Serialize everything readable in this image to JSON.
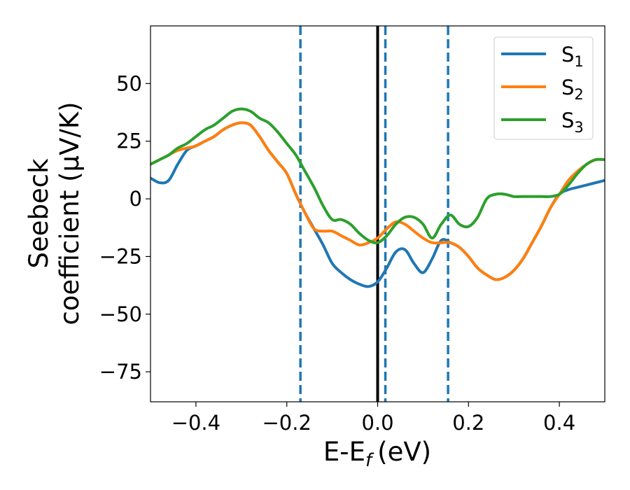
{
  "chart_data": {
    "type": "line",
    "xlabel": "E-E",
    "xlabel_subscript": "f",
    "xlabel_unit": "(eV)",
    "ylabel_line1": "Seebeck",
    "ylabel_line2": "coefficient  (μV/K)",
    "xlim": [
      -0.5,
      0.5
    ],
    "ylim": [
      -88,
      75
    ],
    "xticks": [
      -0.4,
      -0.2,
      0.0,
      0.2,
      0.4
    ],
    "xtick_labels": [
      "−0.4",
      "−0.2",
      "0.0",
      "0.2",
      "0.4"
    ],
    "yticks": [
      50,
      25,
      0,
      -25,
      -50,
      -75
    ],
    "ytick_labels": [
      "50",
      "25",
      "0",
      "−25",
      "−50",
      "−75"
    ],
    "grid": false,
    "legend_position": "top-right",
    "colors": {
      "S1": "#1f77b4",
      "S2": "#ff7f0e",
      "S3": "#2ca02c",
      "fermi_line": "#000000",
      "dashed_lines": "#1f77b4"
    },
    "vertical_lines": [
      {
        "x": 0.0,
        "style": "solid",
        "color": "#000000"
      },
      {
        "x": -0.17,
        "style": "dashed",
        "color": "#1f77b4"
      },
      {
        "x": 0.017,
        "style": "dashed",
        "color": "#1f77b4"
      },
      {
        "x": 0.155,
        "style": "dashed",
        "color": "#1f77b4"
      }
    ],
    "series": [
      {
        "name": "S",
        "subscript": "1",
        "color": "#1f77b4",
        "x": [
          -0.5,
          -0.48,
          -0.46,
          -0.44,
          -0.42,
          -0.4,
          -0.38,
          -0.36,
          -0.34,
          -0.32,
          -0.3,
          -0.28,
          -0.26,
          -0.24,
          -0.22,
          -0.2,
          -0.18,
          -0.16,
          -0.14,
          -0.12,
          -0.1,
          -0.08,
          -0.06,
          -0.04,
          -0.02,
          0.0,
          0.02,
          0.04,
          0.06,
          0.08,
          0.1,
          0.12,
          0.14,
          0.16,
          0.18,
          0.2,
          0.22,
          0.24,
          0.26,
          0.28,
          0.3,
          0.32,
          0.34,
          0.36,
          0.38,
          0.4,
          0.42,
          0.44,
          0.46,
          0.48,
          0.5
        ],
        "y": [
          9,
          7,
          8,
          15,
          21,
          23,
          25,
          27,
          30,
          32,
          33,
          32,
          27,
          21,
          16,
          11,
          2,
          -6,
          -13,
          -20,
          -28,
          -32,
          -35,
          -37,
          -38,
          -36,
          -30,
          -23,
          -22,
          -28,
          -32,
          -26,
          -18,
          -19,
          -21,
          -25,
          -30,
          -33,
          -35,
          -34,
          -31,
          -26,
          -19,
          -12,
          -4,
          2,
          4,
          5,
          6,
          7,
          8
        ]
      },
      {
        "name": "S",
        "subscript": "2",
        "color": "#ff7f0e",
        "x": [
          -0.5,
          -0.48,
          -0.46,
          -0.44,
          -0.42,
          -0.4,
          -0.38,
          -0.36,
          -0.34,
          -0.32,
          -0.3,
          -0.28,
          -0.26,
          -0.24,
          -0.22,
          -0.2,
          -0.18,
          -0.16,
          -0.14,
          -0.12,
          -0.1,
          -0.08,
          -0.06,
          -0.04,
          -0.02,
          0.0,
          0.02,
          0.04,
          0.06,
          0.08,
          0.1,
          0.12,
          0.14,
          0.16,
          0.18,
          0.2,
          0.22,
          0.24,
          0.26,
          0.28,
          0.3,
          0.32,
          0.34,
          0.36,
          0.38,
          0.4,
          0.42,
          0.44,
          0.46,
          0.48,
          0.5
        ],
        "y": [
          15,
          17,
          19,
          21,
          22,
          23,
          25,
          27,
          30,
          32,
          33,
          32,
          27,
          21,
          16,
          11,
          2,
          -6,
          -13,
          -14,
          -14,
          -16,
          -18,
          -20,
          -19,
          -17,
          -13,
          -10,
          -11,
          -14,
          -17,
          -19,
          -19,
          -19,
          -21,
          -25,
          -30,
          -33,
          -35,
          -34,
          -31,
          -26,
          -19,
          -12,
          -4,
          2,
          8,
          12,
          15,
          17,
          17
        ]
      },
      {
        "name": "S",
        "subscript": "3",
        "color": "#2ca02c",
        "x": [
          -0.5,
          -0.48,
          -0.46,
          -0.44,
          -0.42,
          -0.4,
          -0.38,
          -0.36,
          -0.34,
          -0.32,
          -0.3,
          -0.28,
          -0.26,
          -0.24,
          -0.22,
          -0.2,
          -0.18,
          -0.16,
          -0.14,
          -0.12,
          -0.1,
          -0.08,
          -0.06,
          -0.04,
          -0.02,
          0.0,
          0.02,
          0.04,
          0.06,
          0.08,
          0.1,
          0.12,
          0.14,
          0.16,
          0.18,
          0.2,
          0.22,
          0.24,
          0.26,
          0.28,
          0.3,
          0.32,
          0.34,
          0.36,
          0.38,
          0.4,
          0.42,
          0.44,
          0.46,
          0.48,
          0.5
        ],
        "y": [
          15,
          17,
          19,
          22,
          24,
          27,
          30,
          32,
          35,
          38,
          39,
          38,
          35,
          33,
          29,
          24,
          19,
          12,
          5,
          -3,
          -9,
          -9,
          -11,
          -15,
          -18,
          -19,
          -16,
          -11,
          -8,
          -8,
          -11,
          -17,
          -11,
          -7,
          -11,
          -12,
          -8,
          0,
          2,
          2,
          1,
          1,
          1,
          1,
          1,
          2,
          6,
          11,
          15,
          17,
          17
        ]
      }
    ]
  }
}
